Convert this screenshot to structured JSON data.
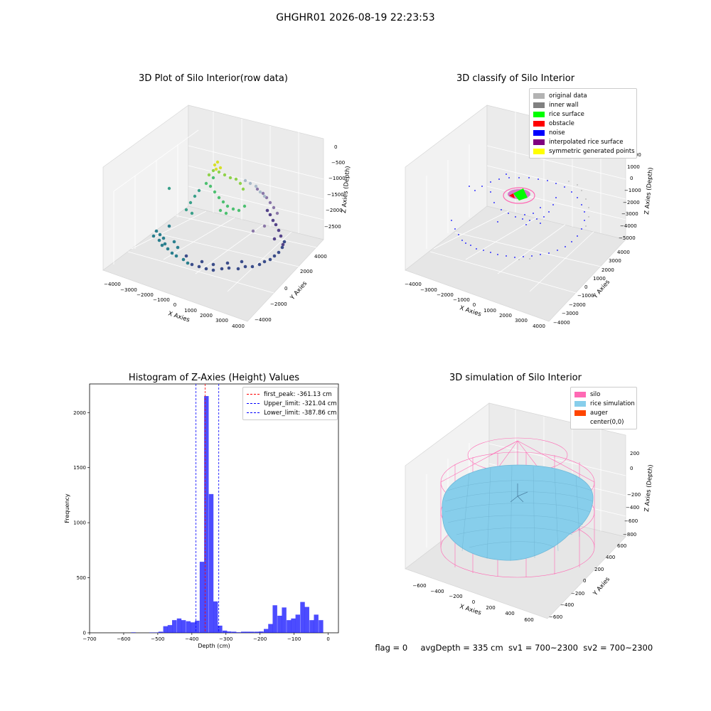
{
  "suptitle": "GHGHR01 2026-08-19 22:23:53",
  "panel1": {
    "title": "3D Plot of Silo Interior(row data)",
    "xlabel": "X Axies",
    "ylabel": "Y Axies",
    "zlabel": "Z Axies (Depth)",
    "x_ticks": [
      "−4000",
      "−3000",
      "−2000",
      "−1000",
      "0",
      "1000",
      "2000",
      "3000",
      "4000"
    ],
    "y_ticks": [
      "−4000",
      "−2000",
      "0",
      "2000",
      "4000"
    ],
    "z_ticks": [
      "0",
      "−500",
      "−1000",
      "−1500",
      "−2000",
      "−2500"
    ]
  },
  "panel2": {
    "title": "3D classify of Silo Interior",
    "xlabel": "X Axies",
    "ylabel": "Y Axies",
    "zlabel": "Z Axies (Depth)",
    "x_ticks": [
      "−4000",
      "−3000",
      "−2000",
      "−1000",
      "0",
      "1000",
      "2000",
      "3000",
      "4000"
    ],
    "y_ticks": [
      "−4000",
      "−3000",
      "−2000",
      "−1000",
      "0",
      "1000",
      "2000",
      "3000",
      "4000"
    ],
    "z_ticks": [
      "2000",
      "1000",
      "0",
      "−1000",
      "−2000",
      "−3000",
      "−4000",
      "−5000"
    ],
    "legend": [
      {
        "label": "original data",
        "color": "#b3b3b3"
      },
      {
        "label": "inner wall",
        "color": "#808080"
      },
      {
        "label": "rice surface",
        "color": "#00ff00"
      },
      {
        "label": "obstacle",
        "color": "#ff0000"
      },
      {
        "label": "noise",
        "color": "#0000ff"
      },
      {
        "label": "interpolated rice surface",
        "color": "#800080"
      },
      {
        "label": "symmetric generated points",
        "color": "#ffff00"
      }
    ]
  },
  "panel4": {
    "title": "3D simulation of Silo Interior",
    "xlabel": "X Axies",
    "ylabel": "Y Axies",
    "zlabel": "Z Axies (Depth)",
    "x_ticks": [
      "−600",
      "−400",
      "−200",
      "0",
      "200",
      "400",
      "600"
    ],
    "y_ticks": [
      "−600",
      "−400",
      "−200",
      "0",
      "200",
      "400",
      "600"
    ],
    "z_ticks": [
      "200",
      "0",
      "−200",
      "−400",
      "−600",
      "−800"
    ],
    "legend": [
      {
        "label": "silo",
        "color": "#ff69b4"
      },
      {
        "label": "rice simulation",
        "color": "#87ceeb"
      },
      {
        "label": "auger",
        "color": "#ff4500"
      },
      {
        "label": "center(0,0)",
        "color": ""
      }
    ]
  },
  "chart_data": [
    {
      "type": "histogram",
      "title": "Histogram of Z-Axies (Height) Values",
      "xlabel": "Depth (cm)",
      "ylabel": "Frequency",
      "xlim": [
        -700,
        30
      ],
      "ylim": [
        0,
        2260
      ],
      "x_ticks": [
        -700,
        -600,
        -500,
        -400,
        -300,
        -200,
        -100,
        0
      ],
      "x_tick_labels": [
        "−700",
        "−600",
        "−500",
        "−400",
        "−300",
        "−200",
        "−100",
        "0"
      ],
      "y_ticks": [
        0,
        500,
        1000,
        1500,
        2000
      ],
      "bar_color": "#0000ff",
      "bin_width": 13.4,
      "bins": [
        {
          "x0": -578,
          "count": 4
        },
        {
          "x0": -525,
          "count": 3
        },
        {
          "x0": -511,
          "count": 3
        },
        {
          "x0": -498,
          "count": 10
        },
        {
          "x0": -484,
          "count": 60
        },
        {
          "x0": -471,
          "count": 70
        },
        {
          "x0": -458,
          "count": 115
        },
        {
          "x0": -444,
          "count": 130
        },
        {
          "x0": -431,
          "count": 115
        },
        {
          "x0": -417,
          "count": 105
        },
        {
          "x0": -404,
          "count": 95
        },
        {
          "x0": -391,
          "count": 110
        },
        {
          "x0": -377,
          "count": 645
        },
        {
          "x0": -364,
          "count": 2150
        },
        {
          "x0": -350,
          "count": 1260
        },
        {
          "x0": -337,
          "count": 285
        },
        {
          "x0": -324,
          "count": 65
        },
        {
          "x0": -310,
          "count": 20
        },
        {
          "x0": -297,
          "count": 12
        },
        {
          "x0": -283,
          "count": 10
        },
        {
          "x0": -270,
          "count": 5
        },
        {
          "x0": -256,
          "count": 10
        },
        {
          "x0": -243,
          "count": 10
        },
        {
          "x0": -230,
          "count": 10
        },
        {
          "x0": -216,
          "count": 10
        },
        {
          "x0": -203,
          "count": 12
        },
        {
          "x0": -189,
          "count": 35
        },
        {
          "x0": -176,
          "count": 80
        },
        {
          "x0": -163,
          "count": 250
        },
        {
          "x0": -149,
          "count": 155
        },
        {
          "x0": -136,
          "count": 230
        },
        {
          "x0": -122,
          "count": 115
        },
        {
          "x0": -109,
          "count": 130
        },
        {
          "x0": -96,
          "count": 165
        },
        {
          "x0": -82,
          "count": 280
        },
        {
          "x0": -69,
          "count": 235
        },
        {
          "x0": -55,
          "count": 115
        },
        {
          "x0": -42,
          "count": 165
        },
        {
          "x0": -28,
          "count": 115
        }
      ],
      "vlines": [
        {
          "label": "first_peak: -361.13 cm",
          "x": -361.13,
          "color": "#ff0000"
        },
        {
          "label": "Upper_limit: -321.04 cm",
          "x": -321.04,
          "color": "#0000ff"
        },
        {
          "label": "Lower_limit: -387.86 cm",
          "x": -387.86,
          "color": "#0000ff"
        }
      ],
      "legend_position": "upper right"
    }
  ],
  "footer": {
    "flag": "flag = 0",
    "avg": "avgDepth = 335 cm",
    "sv1": "sv1 = 700~2300",
    "sv2": "sv2 = 700~2300"
  }
}
